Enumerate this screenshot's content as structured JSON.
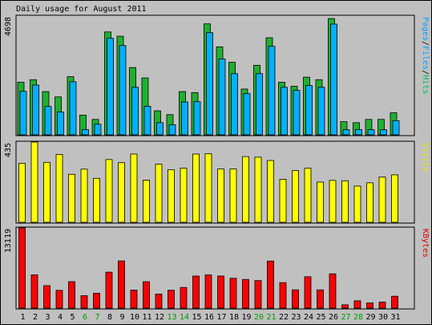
{
  "chart_data": {
    "title": "Daily usage for August 2011",
    "days": [
      "1",
      "2",
      "3",
      "4",
      "5",
      "6",
      "7",
      "8",
      "9",
      "10",
      "11",
      "12",
      "13",
      "14",
      "15",
      "16",
      "17",
      "18",
      "19",
      "20",
      "21",
      "22",
      "23",
      "24",
      "25",
      "26",
      "27",
      "28",
      "29",
      "30",
      "31"
    ],
    "weekend_days": [
      "6",
      "7",
      "13",
      "14",
      "20",
      "21",
      "27",
      "28"
    ],
    "weekend_color": "#009900",
    "panels": [
      {
        "type": "bar",
        "max_label": "4698",
        "ylim": [
          0,
          4698
        ],
        "legend": [
          {
            "text": "Pages",
            "color": "#00a0ff"
          },
          {
            "text": "/",
            "color": "#000000"
          },
          {
            "text": "Files",
            "color": "#00a0ff"
          },
          {
            "text": "/",
            "color": "#000000"
          },
          {
            "text": "Hits",
            "color": "#00c060"
          }
        ],
        "series": [
          {
            "name": "Hits",
            "color": "#1fb030",
            "values": [
              2080,
              2180,
              1710,
              1500,
              2300,
              780,
              610,
              4070,
              3900,
              2660,
              2250,
              950,
              800,
              1710,
              1670,
              4390,
              3480,
              2870,
              1810,
              2750,
              3840,
              2080,
              1920,
              2280,
              2180,
              4600,
              520,
              480,
              610,
              610,
              870
            ]
          },
          {
            "name": "Files",
            "color": "#00b0ff",
            "values": [
              1720,
              1970,
              1120,
              900,
              2100,
              210,
              420,
              3820,
              3530,
              1880,
              1130,
              480,
              400,
              1300,
              1310,
              4040,
              3000,
              2420,
              1630,
              2420,
              3500,
              1880,
              1760,
              1950,
              1880,
              4380,
              200,
              210,
              200,
              200,
              560
            ]
          }
        ]
      },
      {
        "type": "bar",
        "max_label": "435",
        "ylim": [
          0,
          435
        ],
        "legend": [
          {
            "text": "Visits",
            "color": "#e6e600"
          }
        ],
        "series": [
          {
            "name": "Visits",
            "color": "#ffff00",
            "values": [
              320,
              435,
              325,
              368,
              260,
              288,
              238,
              340,
              323,
              370,
              228,
              315,
              285,
              293,
              370,
              372,
              289,
              289,
              356,
              353,
              335,
              233,
              280,
              293,
              218,
              227,
              225,
              196,
              214,
              245,
              257
            ]
          }
        ]
      },
      {
        "type": "bar",
        "max_label": "13119",
        "ylim": [
          0,
          13119
        ],
        "legend": [
          {
            "text": "KBytes",
            "color": "#e00000"
          }
        ],
        "series": [
          {
            "name": "KBytes",
            "color": "#ff0000",
            "values": [
              13119,
              5450,
              3680,
              2910,
              4330,
              2040,
              2430,
              5890,
              7720,
              2960,
              4330,
              2300,
              2930,
              3380,
              5250,
              5430,
              5250,
              4880,
              4690,
              4510,
              7700,
              4170,
              2990,
              5140,
              2990,
              5610,
              550,
              1200,
              860,
              1000,
              1950
            ]
          }
        ]
      }
    ]
  }
}
